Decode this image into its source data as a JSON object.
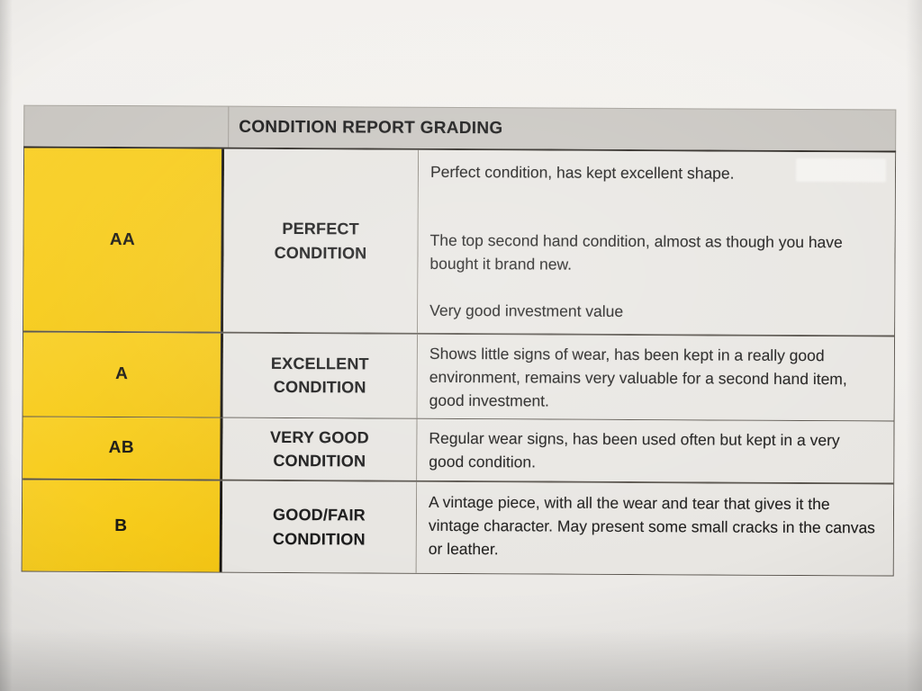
{
  "document": {
    "title": "CONDITION REPORT GRADING"
  },
  "table": {
    "header_title": "CONDITION REPORT GRADING",
    "rows": [
      {
        "grade": "AA",
        "condition": "PERFECT\nCONDITION",
        "paragraphs": [
          "Perfect condition, has kept excellent shape.",
          "The top second hand condition, almost as though you have bought it brand new.",
          "Very good investment value"
        ]
      },
      {
        "grade": "A",
        "condition": "EXCELLENT\nCONDITION",
        "paragraphs": [
          "Shows little signs of wear, has been kept in a really good environment, remains very valuable for a second hand item, good investment."
        ]
      },
      {
        "grade": "AB",
        "condition": "VERY GOOD\nCONDITION",
        "paragraphs": [
          "Regular wear signs, has been used often but kept in a very good condition."
        ]
      },
      {
        "grade": "B",
        "condition": "GOOD/FAIR\nCONDITION",
        "paragraphs": [
          "A vintage piece, with all the wear and tear that gives it the vintage character. May present some small cracks in the canvas or leather."
        ]
      }
    ]
  },
  "colors": {
    "accent_yellow": "#F7CC1C",
    "header_gray": "#C9C6C1",
    "cell_gray": "#E7E5E1",
    "paper": "#F0EEEA",
    "ink": "#171717",
    "border_dark": "#2B2722",
    "border_mid": "#57524B",
    "border_light": "#8D8880"
  }
}
